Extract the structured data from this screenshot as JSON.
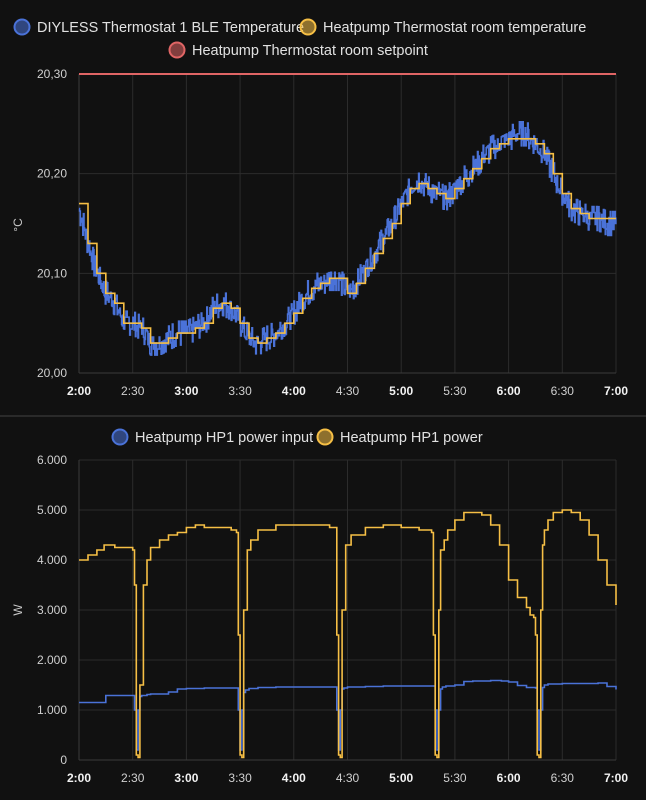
{
  "colors": {
    "background": "#111111",
    "blue": "#4a72d8",
    "orange": "#f6bf45",
    "red": "#e06565",
    "grid": "#2c2c2c"
  },
  "chart_data": [
    {
      "type": "line",
      "title": "",
      "ylabel": "°C",
      "xlabel": "",
      "ylim": [
        20.0,
        20.3
      ],
      "xlim": [
        "2:00",
        "7:00"
      ],
      "grid": true,
      "legend_position": "top",
      "y_ticks": [
        "20,00",
        "20,10",
        "20,20",
        "20,30"
      ],
      "x_ticks": [
        {
          "label": "2:00",
          "bold": true
        },
        {
          "label": "2:30",
          "bold": false
        },
        {
          "label": "3:00",
          "bold": true
        },
        {
          "label": "3:30",
          "bold": false
        },
        {
          "label": "4:00",
          "bold": true
        },
        {
          "label": "4:30",
          "bold": false
        },
        {
          "label": "5:00",
          "bold": true
        },
        {
          "label": "5:30",
          "bold": false
        },
        {
          "label": "6:00",
          "bold": true
        },
        {
          "label": "6:30",
          "bold": false
        },
        {
          "label": "7:00",
          "bold": true
        }
      ],
      "series": [
        {
          "name": "DIYLESS Thermostat 1 BLE Temperature",
          "color": "#4a72d8",
          "style": "step",
          "x_minutes": [
            0,
            5,
            10,
            15,
            20,
            25,
            30,
            35,
            40,
            45,
            50,
            55,
            60,
            65,
            70,
            75,
            80,
            85,
            90,
            95,
            100,
            105,
            110,
            115,
            120,
            125,
            130,
            135,
            140,
            145,
            150,
            155,
            160,
            165,
            170,
            175,
            180,
            185,
            190,
            195,
            200,
            205,
            210,
            215,
            220,
            225,
            230,
            235,
            240,
            245,
            250,
            255,
            260,
            265,
            270,
            275,
            280,
            285,
            290,
            295,
            300
          ],
          "y": [
            20.165,
            20.13,
            20.1,
            20.08,
            20.07,
            20.05,
            20.05,
            20.045,
            20.03,
            20.03,
            20.035,
            20.04,
            20.04,
            20.045,
            20.05,
            20.065,
            20.07,
            20.065,
            20.05,
            20.035,
            20.03,
            20.035,
            20.04,
            20.05,
            20.06,
            20.075,
            20.085,
            20.09,
            20.095,
            20.095,
            20.08,
            20.09,
            20.105,
            20.12,
            20.135,
            20.15,
            20.17,
            20.185,
            20.195,
            20.185,
            20.18,
            20.175,
            20.185,
            20.195,
            20.205,
            20.215,
            20.225,
            20.23,
            20.235,
            20.24,
            20.24,
            20.23,
            20.22,
            20.2,
            20.18,
            20.165,
            20.16,
            20.155,
            20.155,
            20.15,
            20.15
          ]
        },
        {
          "name": "Heatpump Thermostat room temperature",
          "color": "#f6bf45",
          "style": "step",
          "x_minutes": [
            0,
            5,
            10,
            15,
            20,
            25,
            30,
            35,
            40,
            45,
            50,
            55,
            60,
            65,
            70,
            75,
            80,
            85,
            90,
            95,
            100,
            105,
            110,
            115,
            120,
            125,
            130,
            135,
            140,
            145,
            150,
            155,
            160,
            165,
            170,
            175,
            180,
            185,
            190,
            195,
            200,
            205,
            210,
            215,
            220,
            225,
            230,
            235,
            240,
            245,
            250,
            255,
            260,
            265,
            270,
            275,
            280,
            285,
            290,
            295,
            300
          ],
          "y": [
            20.17,
            20.13,
            20.1,
            20.08,
            20.07,
            20.05,
            20.05,
            20.045,
            20.03,
            20.03,
            20.035,
            20.04,
            20.04,
            20.045,
            20.05,
            20.065,
            20.07,
            20.065,
            20.05,
            20.035,
            20.03,
            20.035,
            20.04,
            20.05,
            20.06,
            20.075,
            20.085,
            20.09,
            20.095,
            20.095,
            20.08,
            20.09,
            20.105,
            20.12,
            20.135,
            20.15,
            20.17,
            20.185,
            20.19,
            20.185,
            20.18,
            20.175,
            20.185,
            20.195,
            20.205,
            20.215,
            20.225,
            20.23,
            20.235,
            20.235,
            20.235,
            20.23,
            20.22,
            20.2,
            20.18,
            20.165,
            20.16,
            20.155,
            20.155,
            20.155,
            20.155
          ]
        },
        {
          "name": "Heatpump Thermostat room setpoint",
          "color": "#e06565",
          "style": "line",
          "x_minutes": [
            0,
            300
          ],
          "y": [
            20.3,
            20.3
          ]
        }
      ]
    },
    {
      "type": "line",
      "title": "",
      "ylabel": "W",
      "xlabel": "",
      "ylim": [
        0,
        6000
      ],
      "xlim": [
        "2:00",
        "7:00"
      ],
      "grid": true,
      "legend_position": "top",
      "y_ticks": [
        "0",
        "1.000",
        "2.000",
        "3.000",
        "4.000",
        "5.000",
        "6.000"
      ],
      "x_ticks": [
        {
          "label": "2:00",
          "bold": true
        },
        {
          "label": "2:30",
          "bold": false
        },
        {
          "label": "3:00",
          "bold": true
        },
        {
          "label": "3:30",
          "bold": false
        },
        {
          "label": "4:00",
          "bold": true
        },
        {
          "label": "4:30",
          "bold": false
        },
        {
          "label": "5:00",
          "bold": true
        },
        {
          "label": "5:30",
          "bold": false
        },
        {
          "label": "6:00",
          "bold": true
        },
        {
          "label": "6:30",
          "bold": false
        },
        {
          "label": "7:00",
          "bold": true
        }
      ],
      "series": [
        {
          "name": "Heatpump HP1 power input",
          "color": "#4a72d8",
          "style": "step",
          "x_minutes": [
            0,
            14,
            15,
            30,
            31,
            32,
            33,
            34,
            35,
            38,
            40,
            50,
            55,
            60,
            70,
            80,
            88,
            89,
            90,
            91,
            92,
            93,
            95,
            100,
            110,
            120,
            130,
            143,
            144,
            145,
            146,
            147,
            148,
            150,
            160,
            170,
            180,
            198,
            199,
            200,
            201,
            202,
            203,
            205,
            210,
            215,
            220,
            230,
            236,
            240,
            245,
            250,
            255,
            256,
            257,
            258,
            259,
            260,
            262,
            270,
            280,
            290,
            295,
            300
          ],
          "y": [
            1150,
            1150,
            1290,
            1290,
            1000,
            200,
            1000,
            1270,
            1290,
            1310,
            1320,
            1360,
            1420,
            1430,
            1440,
            1440,
            1440,
            1000,
            200,
            1000,
            1350,
            1400,
            1430,
            1450,
            1460,
            1460,
            1460,
            1460,
            1000,
            200,
            1000,
            1420,
            1440,
            1460,
            1470,
            1480,
            1480,
            1480,
            1000,
            200,
            1000,
            1420,
            1460,
            1480,
            1500,
            1570,
            1580,
            1590,
            1580,
            1560,
            1490,
            1450,
            1440,
            1000,
            200,
            1000,
            1450,
            1500,
            1520,
            1530,
            1530,
            1540,
            1470,
            1410
          ]
        },
        {
          "name": "Heatpump HP1 power",
          "color": "#f6bf45",
          "style": "step",
          "x_minutes": [
            0,
            5,
            10,
            14,
            15,
            20,
            30,
            31,
            32,
            33,
            34,
            36,
            38,
            40,
            45,
            50,
            55,
            60,
            65,
            70,
            75,
            80,
            85,
            88,
            89,
            90,
            91,
            92,
            94,
            96,
            100,
            110,
            120,
            130,
            140,
            143,
            144,
            145,
            146,
            147,
            149,
            152,
            160,
            170,
            180,
            190,
            197,
            198,
            199,
            200,
            201,
            202,
            204,
            206,
            210,
            215,
            220,
            225,
            230,
            235,
            240,
            245,
            250,
            252,
            254,
            255,
            256,
            257,
            258,
            259,
            260,
            262,
            265,
            270,
            275,
            280,
            285,
            290,
            295,
            300
          ],
          "y": [
            4000,
            4100,
            4200,
            4300,
            4300,
            4250,
            4200,
            3500,
            100,
            50,
            1500,
            3500,
            4000,
            4250,
            4400,
            4500,
            4550,
            4650,
            4700,
            4650,
            4650,
            4650,
            4600,
            4550,
            2500,
            100,
            50,
            3000,
            4200,
            4400,
            4600,
            4700,
            4700,
            4700,
            4650,
            4650,
            2500,
            100,
            50,
            3000,
            4300,
            4500,
            4650,
            4700,
            4650,
            4600,
            4550,
            2500,
            100,
            50,
            3000,
            4200,
            4400,
            4600,
            4800,
            4950,
            4950,
            4900,
            4700,
            4300,
            3600,
            3250,
            3050,
            2900,
            2850,
            2500,
            100,
            50,
            3000,
            4300,
            4600,
            4800,
            4950,
            5000,
            4950,
            4800,
            4500,
            4000,
            3500,
            3100
          ]
        }
      ]
    }
  ]
}
